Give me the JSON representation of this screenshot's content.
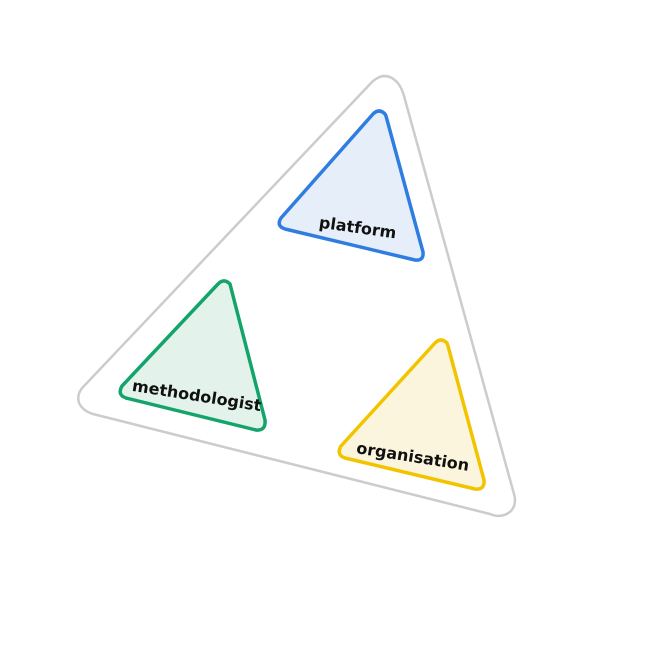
{
  "diagram": {
    "outer_frame": {
      "stroke": "#cccccc",
      "fill": "#ffffff"
    },
    "triangles": [
      {
        "id": "platform",
        "label": "platform",
        "stroke": "#2f7de1",
        "fill": "#e6eff9"
      },
      {
        "id": "methodologist",
        "label": "methodologist",
        "stroke": "#13a46b",
        "fill": "#e3f3ec"
      },
      {
        "id": "organisation",
        "label": "organisation",
        "stroke": "#f2c400",
        "fill": "#fcf5dd"
      }
    ]
  }
}
